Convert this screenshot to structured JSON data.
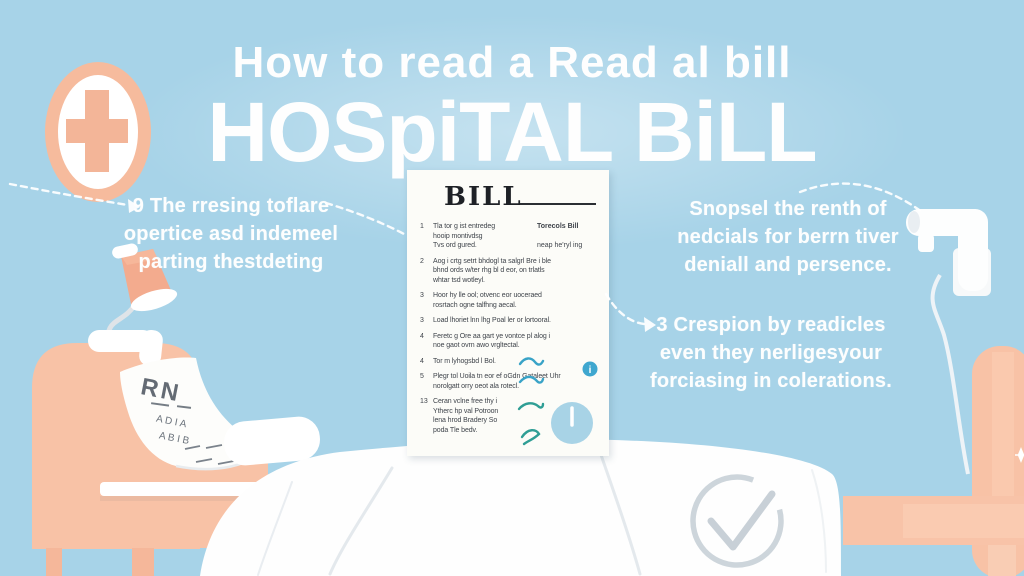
{
  "title": {
    "line1": "How to read a Read al bill",
    "line2": "HOSpiTAL BiLL"
  },
  "left_note": {
    "lines": [
      "9 The rresing toflare",
      "opertice asd indemeel",
      "parting thestdeting"
    ]
  },
  "right_note_top": {
    "lines": [
      "Snopsel the renth of",
      "nedcials for berrn tiver",
      "deniall and persence."
    ]
  },
  "right_note_bottom": {
    "lines": [
      "3 Crespion by readicles",
      "even they nerligesyour",
      "forciasing in colerations."
    ]
  },
  "bill": {
    "header": "BILL",
    "right_column": [
      "Torecols Bill",
      "neap he'ryl ing"
    ],
    "items": [
      {
        "num": "1",
        "narrow": true,
        "lines": [
          "Tla tor g ist entredeg",
          "hooip montivdsg",
          "Tvs ord gured."
        ]
      },
      {
        "num": "2",
        "narrow": false,
        "lines": [
          "Aog i crtg setrt bhdogl ta salgrl Bre i ble",
          "bhnd ords w/ter rhg bl d eor, on trlatls",
          "whtar tsd wotleyl."
        ]
      },
      {
        "num": "3",
        "narrow": false,
        "lines": [
          "Hoor hy lle ool; otvenc eor uoceraed",
          "rosrtach ogne talfhng aecal."
        ]
      },
      {
        "num": "3",
        "narrow": false,
        "lines": [
          "Load lhoriet lnn lhg Poal ler or lortooral."
        ]
      },
      {
        "num": "4",
        "narrow": false,
        "lines": [
          "Feretc g Ore aa gart ye vontce pl alog i",
          "noe gaot ovrn awo vrgltectal."
        ]
      },
      {
        "num": "4",
        "narrow": false,
        "lines": [
          "Tor m lyhogsbd l Bol."
        ]
      },
      {
        "num": "5",
        "narrow": false,
        "lines": [
          "Plegr tol Uoila tn eor ef oGdn Gataleet Uhr",
          "norolgatt orry oeot ala rotecl."
        ]
      },
      {
        "num": "13",
        "narrow": true,
        "lines": [
          "Ceran vclne free thy i",
          "Ytherc hp val Potroon",
          "lena hrod Bradery So",
          "poda Tle bedv."
        ]
      }
    ]
  },
  "patient_chart": {
    "title": "RN",
    "rows": [
      "A D I A",
      "A B I B"
    ]
  },
  "icons": {
    "medical_cross": "+",
    "info_glyph": "i",
    "check_glyph": "check",
    "clock_glyph": "clock"
  },
  "colors": {
    "background": "#a7d3e8",
    "peach": "#f8c2a6",
    "peach_dark": "#f3ab8e",
    "cross_ring": "#f6bb9d",
    "teal_squiggle": "#39a3c7",
    "green_squiggle": "#2f9e95",
    "clock_blue": "#a8d3e6",
    "info_blue": "#3fa7cf",
    "check_gray": "#cdd5db",
    "bill_text": "#3f444b",
    "title_white": "#fefefe"
  }
}
